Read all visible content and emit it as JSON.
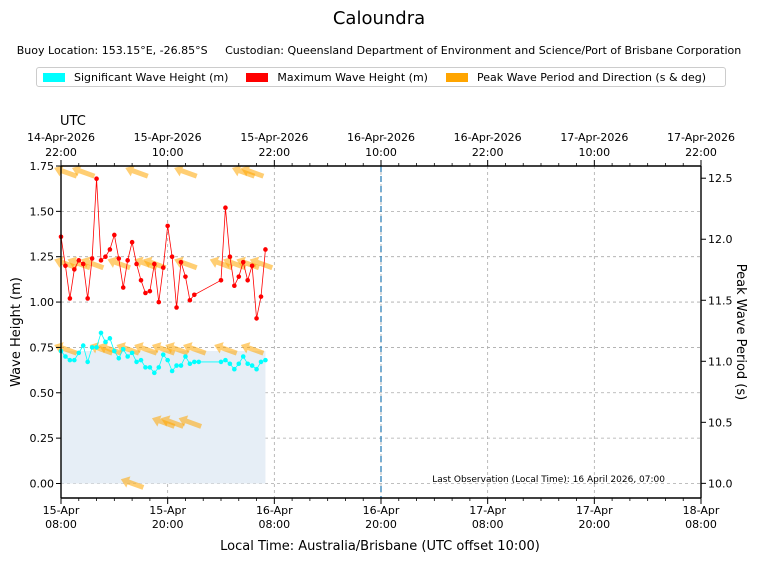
{
  "chart_data": {
    "type": "line",
    "title": "Caloundra",
    "subtitle": {
      "buoy_location": "Buoy Location: 153.15°E, -26.85°S",
      "custodian": "Custodian: Queensland Department of Environment and Science/Port of Brisbane Corporation"
    },
    "legend": [
      {
        "label": "Significant Wave Height (m)",
        "color": "#00ffff"
      },
      {
        "label": "Maximum Wave Height (m)",
        "color": "#ff0000"
      },
      {
        "label": "Peak Wave Period and Direction (s & deg)",
        "color": "#ffa500"
      }
    ],
    "xlabel": "Local Time: Australia/Brisbane (UTC offset 10:00)",
    "ylabel": "Wave Height (m)",
    "y2label": "Peak Wave Period (s)",
    "top_axis_label": "UTC",
    "xlim_hours": [
      0,
      72
    ],
    "ylim": [
      -0.08,
      1.75
    ],
    "y2lim": [
      9.88,
      12.6
    ],
    "x_ticks": [
      {
        "h": 0,
        "l1": "15-Apr",
        "l2": "08:00"
      },
      {
        "h": 12,
        "l1": "15-Apr",
        "l2": "20:00"
      },
      {
        "h": 24,
        "l1": "16-Apr",
        "l2": "08:00"
      },
      {
        "h": 36,
        "l1": "16-Apr",
        "l2": "20:00"
      },
      {
        "h": 48,
        "l1": "17-Apr",
        "l2": "08:00"
      },
      {
        "h": 60,
        "l1": "17-Apr",
        "l2": "20:00"
      },
      {
        "h": 72,
        "l1": "18-Apr",
        "l2": "08:00"
      }
    ],
    "top_ticks": [
      {
        "h": 0,
        "l1": "14-Apr-2026",
        "l2": "22:00"
      },
      {
        "h": 12,
        "l1": "15-Apr-2026",
        "l2": "10:00"
      },
      {
        "h": 24,
        "l1": "15-Apr-2026",
        "l2": "22:00"
      },
      {
        "h": 36,
        "l1": "16-Apr-2026",
        "l2": "10:00"
      },
      {
        "h": 48,
        "l1": "16-Apr-2026",
        "l2": "22:00"
      },
      {
        "h": 60,
        "l1": "17-Apr-2026",
        "l2": "10:00"
      },
      {
        "h": 72,
        "l1": "17-Apr-2026",
        "l2": "22:00"
      }
    ],
    "y_ticks": [
      "0.00",
      "0.25",
      "0.50",
      "0.75",
      "1.00",
      "1.25",
      "1.50",
      "1.75"
    ],
    "y2_ticks": [
      "10.0",
      "10.5",
      "11.0",
      "11.5",
      "12.0",
      "12.5"
    ],
    "last_observation_h": 36,
    "last_observation_text": "Last Observation (Local Time): 16 April 2026, 07:00",
    "hs_fill_end_h": 23,
    "hs_fill_level": 0.73,
    "series": [
      {
        "name": "Significant Wave Height (m)",
        "color": "#00ffff",
        "x": [
          0,
          0.5,
          1,
          1.5,
          2,
          2.5,
          3,
          3.5,
          4,
          4.5,
          5,
          5.5,
          6,
          6.5,
          7,
          7.5,
          8,
          8.5,
          9,
          9.5,
          10,
          10.5,
          11,
          11.5,
          12,
          12.5,
          13,
          13.5,
          14,
          14.5,
          15,
          15.5,
          18,
          18.5,
          19,
          19.5,
          20,
          20.5,
          21,
          21.5,
          22,
          22.5,
          23
        ],
        "values": [
          0.73,
          0.7,
          0.68,
          0.68,
          0.72,
          0.76,
          0.67,
          0.75,
          0.75,
          0.83,
          0.78,
          0.8,
          0.73,
          0.69,
          0.74,
          0.7,
          0.72,
          0.67,
          0.68,
          0.64,
          0.64,
          0.61,
          0.64,
          0.71,
          0.68,
          0.62,
          0.65,
          0.65,
          0.7,
          0.66,
          0.67,
          0.67,
          0.67,
          0.68,
          0.66,
          0.63,
          0.66,
          0.7,
          0.66,
          0.65,
          0.63,
          0.67,
          0.68
        ]
      },
      {
        "name": "Maximum Wave Height (m)",
        "color": "#ff0000",
        "x": [
          0,
          0.5,
          1,
          1.5,
          2,
          2.5,
          3,
          3.5,
          4,
          4.5,
          5,
          5.5,
          6,
          6.5,
          7,
          7.5,
          8,
          8.5,
          9,
          9.5,
          10,
          10.5,
          11,
          11.5,
          12,
          12.5,
          13,
          13.5,
          14,
          14.5,
          15,
          18,
          18.5,
          19,
          19.5,
          20,
          20.5,
          21,
          21.5,
          22,
          22.5,
          23
        ],
        "values": [
          1.36,
          1.2,
          1.02,
          1.18,
          1.23,
          1.21,
          1.02,
          1.24,
          1.68,
          1.23,
          1.25,
          1.29,
          1.37,
          1.24,
          1.08,
          1.23,
          1.33,
          1.21,
          1.12,
          1.05,
          1.06,
          1.21,
          1.0,
          1.19,
          1.42,
          1.25,
          0.97,
          1.22,
          1.14,
          1.01,
          1.04,
          1.12,
          1.52,
          1.25,
          1.09,
          1.14,
          1.22,
          1.12,
          1.2,
          0.91,
          1.03,
          1.29
        ]
      }
    ],
    "peak_period_direction": [
      {
        "h": 0.5,
        "period": 12.55
      },
      {
        "h": 2.5,
        "period": 12.55
      },
      {
        "h": 8.5,
        "period": 12.55
      },
      {
        "h": 14,
        "period": 12.55
      },
      {
        "h": 20.5,
        "period": 12.55
      },
      {
        "h": 21.5,
        "period": 12.55
      },
      {
        "h": 0.5,
        "period": 11.8
      },
      {
        "h": 2,
        "period": 11.8
      },
      {
        "h": 3.5,
        "period": 11.8
      },
      {
        "h": 6.5,
        "period": 11.8
      },
      {
        "h": 9.5,
        "period": 11.8
      },
      {
        "h": 10.5,
        "period": 11.8
      },
      {
        "h": 14,
        "period": 11.8
      },
      {
        "h": 18,
        "period": 11.8
      },
      {
        "h": 19.5,
        "period": 11.8
      },
      {
        "h": 21,
        "period": 11.8
      },
      {
        "h": 22.5,
        "period": 11.8
      },
      {
        "h": 0.5,
        "period": 11.1
      },
      {
        "h": 4.5,
        "period": 11.1
      },
      {
        "h": 5.5,
        "period": 11.1
      },
      {
        "h": 7.5,
        "period": 11.1
      },
      {
        "h": 9.5,
        "period": 11.1
      },
      {
        "h": 11.5,
        "period": 11.1
      },
      {
        "h": 13,
        "period": 11.1
      },
      {
        "h": 15,
        "period": 11.1
      },
      {
        "h": 18.5,
        "period": 11.1
      },
      {
        "h": 21.5,
        "period": 11.1
      },
      {
        "h": 11.5,
        "period": 10.5
      },
      {
        "h": 12.5,
        "period": 10.5
      },
      {
        "h": 14.5,
        "period": 10.5
      },
      {
        "h": 8,
        "period": 10.0
      }
    ]
  }
}
